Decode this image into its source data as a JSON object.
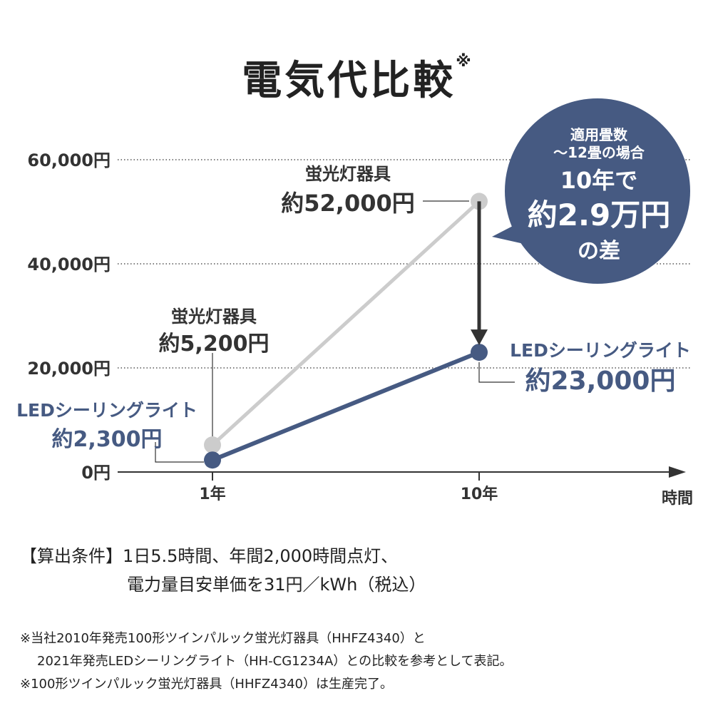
{
  "title": "電気代比較",
  "title_mark": "※",
  "chart_data": {
    "type": "line",
    "title": "電気代比較",
    "xlabel": "時間",
    "categories": [
      "1年",
      "10年"
    ],
    "ylim": [
      0,
      60000
    ],
    "yticks": [
      0,
      20000,
      40000,
      60000
    ],
    "ytick_labels": [
      "0円",
      "20,000円",
      "40,000円",
      "60,000円"
    ],
    "grid": true,
    "series": [
      {
        "name": "蛍光灯器具",
        "values": [
          5200,
          52000
        ],
        "color": "#cccccc"
      },
      {
        "name": "LEDシーリングライト",
        "values": [
          2300,
          23000
        ],
        "color": "#465a82"
      }
    ],
    "labels": {
      "fl_1": {
        "name": "蛍光灯器具",
        "value": "約5,200円"
      },
      "fl_10": {
        "name": "蛍光灯器具",
        "value": "約52,000円"
      },
      "led_1": {
        "name": "LEDシーリングライト",
        "value": "約2,300円"
      },
      "led_10": {
        "name": "LEDシーリングライト",
        "value": "約23,000円"
      }
    },
    "annotation": {
      "line1": "適用畳数",
      "line2": "～12畳の場合",
      "line3": "10年で",
      "line4": "約2.9万円",
      "line5": "の差",
      "color": "#465a82"
    }
  },
  "conditions": {
    "label": "【算出条件】",
    "line1": "1日5.5時間、年間2,000時間点灯、",
    "line2": "電力量目安単価を31円／kWh（税込）"
  },
  "notes": [
    "※当社2010年発売100形ツインパルック蛍光灯器具（HHFZ4340）と",
    "2021年発売LEDシーリングライト（HH-CG1234A）との比較を参考として表記。",
    "※100形ツインパルック蛍光灯器具（HHFZ4340）は生産完了。"
  ]
}
